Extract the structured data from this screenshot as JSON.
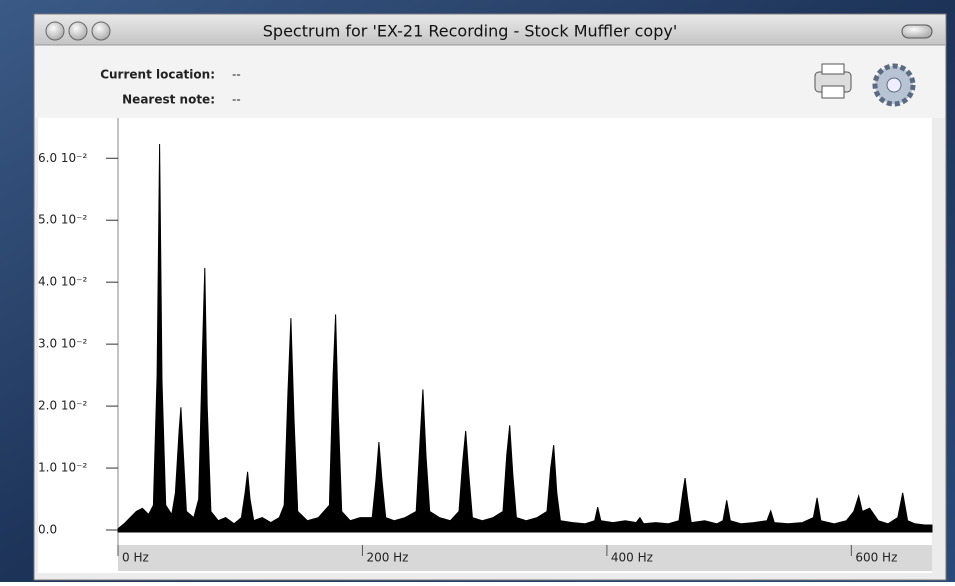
{
  "window": {
    "title": "Spectrum for 'EX-21 Recording - Stock Muffler copy'"
  },
  "toolbar": {
    "current_location_label": "Current location:",
    "current_location_value": "--",
    "nearest_note_label": "Nearest note:",
    "nearest_note_value": "--"
  },
  "chart_data": {
    "type": "area",
    "color": "#000000",
    "x": [
      0,
      5,
      10,
      15,
      20,
      25,
      29,
      32,
      34,
      36,
      39,
      44,
      47,
      50,
      51.5,
      53,
      56,
      62,
      66,
      69,
      71,
      73,
      76,
      82,
      88,
      95,
      101,
      104,
      106,
      108,
      111,
      118,
      125,
      132,
      136,
      139,
      141.5,
      144,
      147,
      155,
      164,
      173,
      176,
      178,
      180,
      183,
      190,
      198,
      208,
      211,
      213.5,
      216,
      219,
      226,
      235,
      244,
      247,
      249.5,
      252,
      255,
      263,
      272,
      279,
      282,
      284.5,
      287,
      290,
      298,
      307,
      315,
      318,
      320.5,
      323,
      326,
      334,
      343,
      351,
      354,
      356.5,
      359,
      362,
      372,
      382,
      390,
      392.5,
      395,
      405,
      415,
      424,
      427,
      430,
      440,
      450,
      459,
      462,
      464,
      466,
      469,
      480,
      490,
      495,
      498,
      501,
      510,
      520,
      531,
      534,
      537,
      548,
      560,
      569,
      572,
      575,
      586,
      596,
      602,
      606,
      609,
      615,
      622,
      630,
      638,
      642,
      646,
      652,
      660,
      666
    ],
    "values": [
      0.0002,
      0.001,
      0.002,
      0.003,
      0.0035,
      0.0025,
      0.004,
      0.025,
      0.0623,
      0.024,
      0.004,
      0.0025,
      0.006,
      0.016,
      0.0198,
      0.014,
      0.003,
      0.002,
      0.005,
      0.028,
      0.0423,
      0.02,
      0.003,
      0.0015,
      0.002,
      0.001,
      0.002,
      0.006,
      0.0094,
      0.005,
      0.0015,
      0.002,
      0.0012,
      0.002,
      0.004,
      0.022,
      0.0342,
      0.018,
      0.003,
      0.0015,
      0.002,
      0.004,
      0.025,
      0.0348,
      0.02,
      0.003,
      0.0015,
      0.002,
      0.002,
      0.008,
      0.0142,
      0.008,
      0.002,
      0.0015,
      0.002,
      0.003,
      0.014,
      0.0227,
      0.012,
      0.003,
      0.002,
      0.0015,
      0.003,
      0.011,
      0.016,
      0.009,
      0.002,
      0.0015,
      0.002,
      0.003,
      0.012,
      0.0169,
      0.009,
      0.002,
      0.0015,
      0.002,
      0.003,
      0.01,
      0.0137,
      0.006,
      0.0015,
      0.0012,
      0.001,
      0.0015,
      0.0037,
      0.0015,
      0.0012,
      0.0015,
      0.0012,
      0.002,
      0.001,
      0.0012,
      0.001,
      0.0015,
      0.006,
      0.0084,
      0.005,
      0.0012,
      0.0015,
      0.001,
      0.0015,
      0.0048,
      0.0015,
      0.001,
      0.0012,
      0.0015,
      0.0031,
      0.0012,
      0.001,
      0.0012,
      0.002,
      0.0052,
      0.0015,
      0.001,
      0.0015,
      0.003,
      0.0055,
      0.003,
      0.0035,
      0.0015,
      0.001,
      0.002,
      0.006,
      0.0015,
      0.001,
      0.0008,
      0.0008
    ],
    "xlim": [
      0,
      666
    ],
    "ylim": [
      0,
      0.0665
    ],
    "xticks": [
      {
        "value": 0,
        "label": "0 Hz"
      },
      {
        "value": 200,
        "label": "200 Hz"
      },
      {
        "value": 400,
        "label": "400 Hz"
      },
      {
        "value": 600,
        "label": "600 Hz"
      }
    ],
    "yticks": [
      {
        "value": 0,
        "label": "0.0"
      },
      {
        "value": 0.01,
        "label": "1.0 10⁻²"
      },
      {
        "value": 0.02,
        "label": "2.0 10⁻²"
      },
      {
        "value": 0.03,
        "label": "3.0 10⁻²"
      },
      {
        "value": 0.04,
        "label": "4.0 10⁻²"
      },
      {
        "value": 0.05,
        "label": "5.0 10⁻²"
      },
      {
        "value": 0.06,
        "label": "6.0 10⁻²"
      }
    ]
  }
}
